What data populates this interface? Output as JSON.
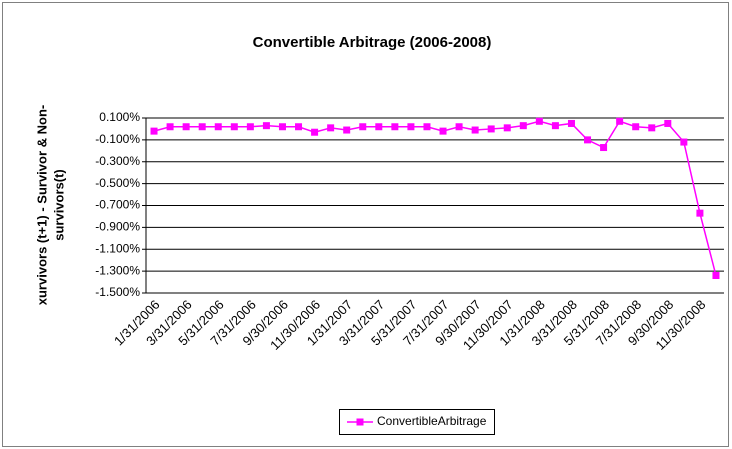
{
  "chart_data": {
    "type": "line",
    "title": "Convertible Arbitrage (2006-2008)",
    "ylabel": [
      "xurvivors (t+1) - Survivor & Non-",
      "survivors(t)"
    ],
    "categories": [
      "1/31/2006",
      null,
      "3/31/2006",
      null,
      "5/31/2006",
      null,
      "7/31/2006",
      null,
      "9/30/2006",
      null,
      "11/30/2006",
      null,
      "1/31/2007",
      null,
      "3/31/2007",
      null,
      "5/31/2007",
      null,
      "7/31/2007",
      null,
      "9/30/2007",
      null,
      "11/30/2007",
      null,
      "1/31/2008",
      null,
      "3/31/2008",
      null,
      "5/31/2008",
      null,
      "7/31/2008",
      null,
      "9/30/2008",
      null,
      "11/30/2008",
      null
    ],
    "series": [
      {
        "name": "ConvertibleArbitrage",
        "color": "#ff00ff",
        "values": [
          -0.02,
          0.02,
          0.02,
          0.02,
          0.02,
          0.02,
          0.02,
          0.03,
          0.02,
          0.02,
          -0.03,
          0.01,
          -0.01,
          0.02,
          0.02,
          0.02,
          0.02,
          0.02,
          -0.02,
          0.02,
          -0.01,
          0.0,
          0.01,
          0.03,
          0.07,
          0.03,
          0.05,
          -0.1,
          -0.17,
          0.07,
          0.02,
          0.01,
          0.05,
          -0.12,
          -0.77,
          -1.34
        ]
      }
    ],
    "ylim": [
      -1.5,
      0.1
    ],
    "yticks": [
      {
        "value": 0.1,
        "label": "0.100%"
      },
      {
        "value": -0.1,
        "label": "-0.100%"
      },
      {
        "value": -0.3,
        "label": "-0.300%"
      },
      {
        "value": -0.5,
        "label": "-0.500%"
      },
      {
        "value": -0.7,
        "label": "-0.700%"
      },
      {
        "value": -0.9,
        "label": "-0.900%"
      },
      {
        "value": -1.1,
        "label": "-1.100%"
      },
      {
        "value": -1.3,
        "label": "-1.300%"
      },
      {
        "value": -1.5,
        "label": "-1.500%"
      }
    ],
    "grid": true,
    "legend": "bottom"
  }
}
